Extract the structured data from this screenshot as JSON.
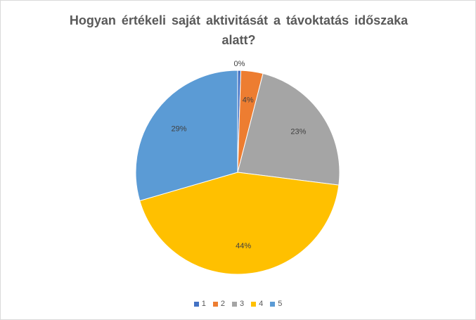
{
  "chart_data": {
    "type": "pie",
    "title": "Hogyan értékeli saját aktivitását a távoktatás időszaka alatt?",
    "title_lines": [
      "Hogyan értékeli saját aktivitását a távoktatás időszaka",
      "alatt?"
    ],
    "categories": [
      "1",
      "2",
      "3",
      "4",
      "5"
    ],
    "values": [
      0.5,
      3.5,
      23,
      43.5,
      29.5
    ],
    "data_labels": [
      "0%",
      "4%",
      "23%",
      "44%",
      "29%"
    ],
    "colors": [
      "#4472C4",
      "#ED7D31",
      "#A5A5A5",
      "#FFC000",
      "#5B9BD5"
    ],
    "legend_position": "bottom"
  }
}
